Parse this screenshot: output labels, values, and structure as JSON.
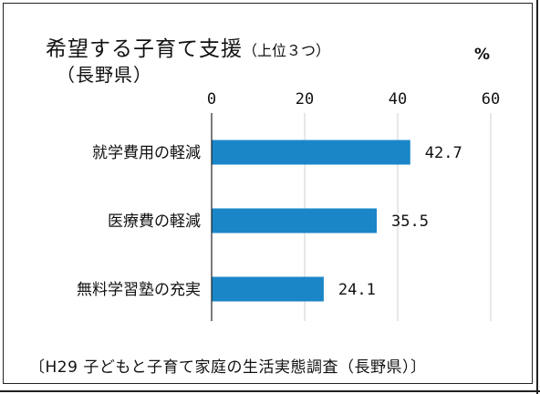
{
  "title": "希望する子育て支援",
  "title_suffix": "（上位３つ）",
  "title_line2": "（長野県）",
  "unit": "%",
  "source": "〔H29 子どもと子育て家庭の生活実態調査（長野県）〕",
  "colors": {
    "bar": "#1a86c8",
    "grid": "#d0d0d0",
    "axis": "#222222"
  },
  "chart_data": {
    "type": "bar",
    "orientation": "horizontal",
    "categories": [
      "就学費用の軽減",
      "医療費の軽減",
      "無料学習塾の充実"
    ],
    "values": [
      42.7,
      35.5,
      24.1
    ],
    "value_labels": [
      "42.7",
      "35.5",
      "24.1"
    ],
    "xlim": [
      0,
      60
    ],
    "ticks": [
      "0",
      "20",
      "40",
      "60"
    ],
    "tick_values": [
      0,
      20,
      40,
      60
    ],
    "grid": true
  }
}
